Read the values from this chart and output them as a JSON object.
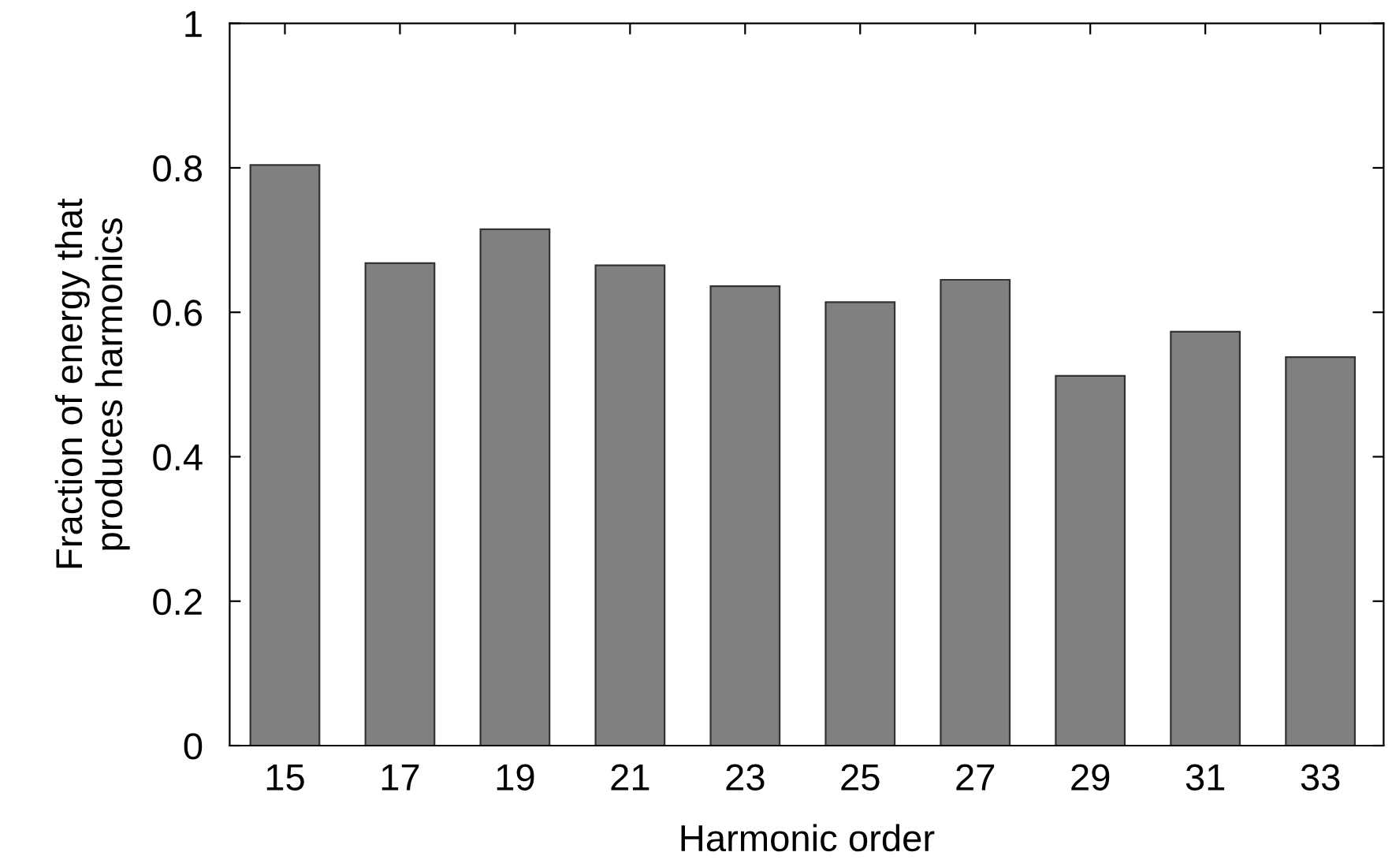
{
  "chart_data": {
    "type": "bar",
    "xlabel": "Harmonic order",
    "ylabel": "Fraction of energy that\nproduces harmonics",
    "categories": [
      "15",
      "17",
      "19",
      "21",
      "23",
      "25",
      "27",
      "29",
      "31",
      "33"
    ],
    "values": [
      0.804,
      0.668,
      0.715,
      0.665,
      0.636,
      0.614,
      0.645,
      0.512,
      0.573,
      0.538
    ],
    "color": "#808080",
    "ylim": [
      0,
      1
    ],
    "yticks": [
      0,
      0.2,
      0.4,
      0.6,
      0.8,
      1
    ],
    "grid": false,
    "legend": false
  }
}
